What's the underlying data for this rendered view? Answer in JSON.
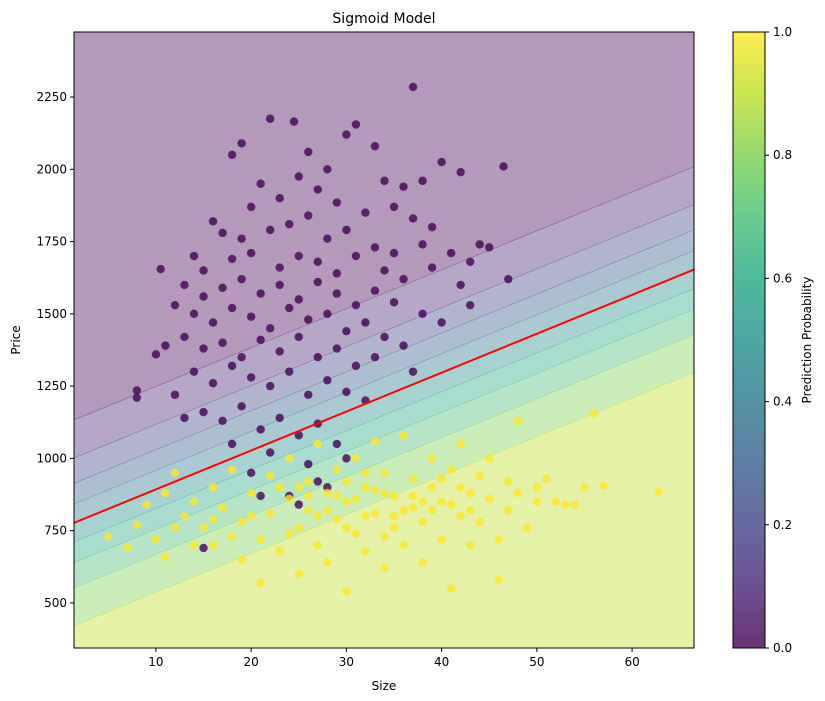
{
  "chart_data": {
    "type": "scatter",
    "title": "Sigmoid Model",
    "xlabel": "Size",
    "ylabel": "Price",
    "xlim": [
      1.4,
      66.5
    ],
    "ylim": [
      344,
      2475
    ],
    "xticks": [
      10,
      20,
      30,
      40,
      50,
      60
    ],
    "yticks": [
      500,
      750,
      1000,
      1250,
      1500,
      1750,
      2000,
      2250
    ],
    "grid": false,
    "decision_boundary": {
      "color": "#ff0000",
      "intercept": 758,
      "slope": 13.46
    },
    "probability_contours": {
      "levels": [
        0,
        0.1,
        0.2,
        0.3,
        0.4,
        0.5,
        0.6,
        0.7,
        0.8,
        0.9,
        1.0
      ],
      "colormap": "viridis",
      "alpha": 0.4,
      "steepness": 0.00617
    },
    "colorbar": {
      "label": "Prediction Probability",
      "ticks": [
        "0.0",
        "0.2",
        "0.4",
        "0.6",
        "0.8",
        "1.0"
      ],
      "range": [
        0,
        1
      ]
    },
    "series": [
      {
        "class": 0,
        "color": "#440154",
        "points": [
          [
            22,
            2175
          ],
          [
            24.5,
            2165
          ],
          [
            31,
            2155
          ],
          [
            26,
            2060
          ],
          [
            19,
            2090
          ],
          [
            30,
            2120
          ],
          [
            33,
            2080
          ],
          [
            28,
            2000
          ],
          [
            25,
            1975
          ],
          [
            21,
            1950
          ],
          [
            27,
            1930
          ],
          [
            23,
            1900
          ],
          [
            34,
            1960
          ],
          [
            36,
            1940
          ],
          [
            38,
            1960
          ],
          [
            40,
            2025
          ],
          [
            42,
            1990
          ],
          [
            18,
            2050
          ],
          [
            20,
            1870
          ],
          [
            29,
            1885
          ],
          [
            32,
            1850
          ],
          [
            35,
            1870
          ],
          [
            37,
            1830
          ],
          [
            39,
            1800
          ],
          [
            16,
            1820
          ],
          [
            17,
            1780
          ],
          [
            19,
            1760
          ],
          [
            22,
            1790
          ],
          [
            24,
            1810
          ],
          [
            26,
            1840
          ],
          [
            28,
            1760
          ],
          [
            30,
            1790
          ],
          [
            33,
            1730
          ],
          [
            35,
            1710
          ],
          [
            38,
            1740
          ],
          [
            41,
            1710
          ],
          [
            43,
            1680
          ],
          [
            44,
            1740
          ],
          [
            45,
            1730
          ],
          [
            14,
            1700
          ],
          [
            15,
            1650
          ],
          [
            18,
            1690
          ],
          [
            20,
            1710
          ],
          [
            23,
            1660
          ],
          [
            25,
            1700
          ],
          [
            27,
            1680
          ],
          [
            29,
            1640
          ],
          [
            31,
            1700
          ],
          [
            34,
            1650
          ],
          [
            36,
            1620
          ],
          [
            39,
            1660
          ],
          [
            42,
            1600
          ],
          [
            47,
            1620
          ],
          [
            13,
            1600
          ],
          [
            15,
            1560
          ],
          [
            17,
            1590
          ],
          [
            19,
            1620
          ],
          [
            21,
            1570
          ],
          [
            23,
            1600
          ],
          [
            25,
            1550
          ],
          [
            27,
            1610
          ],
          [
            29,
            1570
          ],
          [
            31,
            1530
          ],
          [
            33,
            1580
          ],
          [
            35,
            1540
          ],
          [
            38,
            1500
          ],
          [
            40,
            1470
          ],
          [
            43,
            1530
          ],
          [
            12,
            1530
          ],
          [
            14,
            1500
          ],
          [
            16,
            1470
          ],
          [
            18,
            1520
          ],
          [
            20,
            1490
          ],
          [
            22,
            1450
          ],
          [
            24,
            1520
          ],
          [
            26,
            1480
          ],
          [
            28,
            1500
          ],
          [
            30,
            1440
          ],
          [
            32,
            1470
          ],
          [
            34,
            1420
          ],
          [
            36,
            1390
          ],
          [
            11,
            1390
          ],
          [
            10,
            1360
          ],
          [
            13,
            1420
          ],
          [
            15,
            1380
          ],
          [
            17,
            1400
          ],
          [
            19,
            1350
          ],
          [
            21,
            1410
          ],
          [
            23,
            1370
          ],
          [
            25,
            1420
          ],
          [
            27,
            1350
          ],
          [
            29,
            1380
          ],
          [
            31,
            1320
          ],
          [
            33,
            1350
          ],
          [
            37,
            1300
          ],
          [
            14,
            1300
          ],
          [
            16,
            1260
          ],
          [
            18,
            1320
          ],
          [
            20,
            1280
          ],
          [
            22,
            1250
          ],
          [
            24,
            1300
          ],
          [
            26,
            1220
          ],
          [
            28,
            1270
          ],
          [
            30,
            1230
          ],
          [
            32,
            1200
          ],
          [
            12,
            1220
          ],
          [
            13,
            1140
          ],
          [
            15,
            1160
          ],
          [
            17,
            1130
          ],
          [
            19,
            1180
          ],
          [
            21,
            1100
          ],
          [
            23,
            1140
          ],
          [
            25,
            1080
          ],
          [
            27,
            1120
          ],
          [
            29,
            1050
          ],
          [
            22,
            1020
          ],
          [
            26,
            980
          ],
          [
            28,
            900
          ],
          [
            24,
            870
          ],
          [
            25,
            840
          ],
          [
            20,
            950
          ],
          [
            18,
            1050
          ],
          [
            8,
            1235
          ],
          [
            8,
            1210
          ],
          [
            10.5,
            1655
          ],
          [
            46.5,
            2010
          ],
          [
            37,
            2285
          ],
          [
            15,
            690
          ],
          [
            21,
            870
          ],
          [
            27,
            920
          ],
          [
            30,
            1000
          ]
        ]
      },
      {
        "class": 1,
        "color": "#fde725",
        "points": [
          [
            5,
            730
          ],
          [
            7,
            690
          ],
          [
            8,
            770
          ],
          [
            9,
            840
          ],
          [
            10,
            720
          ],
          [
            11,
            880
          ],
          [
            12,
            950
          ],
          [
            11,
            660
          ],
          [
            13,
            800
          ],
          [
            14,
            850
          ],
          [
            15,
            760
          ],
          [
            16,
            900
          ],
          [
            16,
            700
          ],
          [
            17,
            830
          ],
          [
            18,
            960
          ],
          [
            19,
            780
          ],
          [
            19,
            650
          ],
          [
            20,
            880
          ],
          [
            21,
            720
          ],
          [
            21,
            570
          ],
          [
            22,
            940
          ],
          [
            22,
            810
          ],
          [
            23,
            680
          ],
          [
            24,
            1000
          ],
          [
            24,
            860
          ],
          [
            25,
            760
          ],
          [
            25,
            600
          ],
          [
            26,
            920
          ],
          [
            26,
            820
          ],
          [
            27,
            700
          ],
          [
            27,
            1050
          ],
          [
            28,
            880
          ],
          [
            28,
            640
          ],
          [
            29,
            790
          ],
          [
            29,
            960
          ],
          [
            30,
            850
          ],
          [
            30,
            540
          ],
          [
            31,
            740
          ],
          [
            31,
            1000
          ],
          [
            32,
            900
          ],
          [
            32,
            680
          ],
          [
            33,
            810
          ],
          [
            33,
            1060
          ],
          [
            34,
            950
          ],
          [
            34,
            620
          ],
          [
            35,
            870
          ],
          [
            35,
            760
          ],
          [
            36,
            1080
          ],
          [
            36,
            700
          ],
          [
            37,
            830
          ],
          [
            37,
            930
          ],
          [
            38,
            780
          ],
          [
            38,
            640
          ],
          [
            39,
            900
          ],
          [
            39,
            1000
          ],
          [
            40,
            720
          ],
          [
            40,
            850
          ],
          [
            41,
            960
          ],
          [
            41,
            550
          ],
          [
            42,
            800
          ],
          [
            42,
            1050
          ],
          [
            43,
            880
          ],
          [
            43,
            700
          ],
          [
            44,
            940
          ],
          [
            44,
            780
          ],
          [
            45,
            860
          ],
          [
            45,
            1000
          ],
          [
            46,
            720
          ],
          [
            46,
            580
          ],
          [
            47,
            920
          ],
          [
            47,
            820
          ],
          [
            48,
            1130
          ],
          [
            48,
            880
          ],
          [
            49,
            760
          ],
          [
            50,
            900
          ],
          [
            50,
            850
          ],
          [
            51,
            930
          ],
          [
            52,
            850
          ],
          [
            53,
            840
          ],
          [
            54,
            840
          ],
          [
            55,
            900
          ],
          [
            56,
            1155
          ],
          [
            57,
            905
          ],
          [
            62.8,
            885
          ],
          [
            23,
            900
          ],
          [
            26,
            870
          ],
          [
            28,
            820
          ],
          [
            30,
            760
          ],
          [
            32,
            800
          ],
          [
            34,
            880
          ],
          [
            36,
            820
          ],
          [
            31,
            860
          ],
          [
            33,
            890
          ],
          [
            35,
            800
          ],
          [
            29,
            870
          ],
          [
            27,
            800
          ],
          [
            25,
            900
          ],
          [
            37,
            870
          ],
          [
            39,
            820
          ],
          [
            41,
            840
          ],
          [
            43,
            820
          ],
          [
            24,
            740
          ],
          [
            30,
            920
          ],
          [
            32,
            950
          ],
          [
            34,
            730
          ],
          [
            38,
            850
          ],
          [
            40,
            930
          ],
          [
            42,
            900
          ],
          [
            20,
            800
          ],
          [
            18,
            730
          ],
          [
            16,
            790
          ],
          [
            14,
            700
          ],
          [
            12,
            760
          ]
        ]
      }
    ]
  }
}
